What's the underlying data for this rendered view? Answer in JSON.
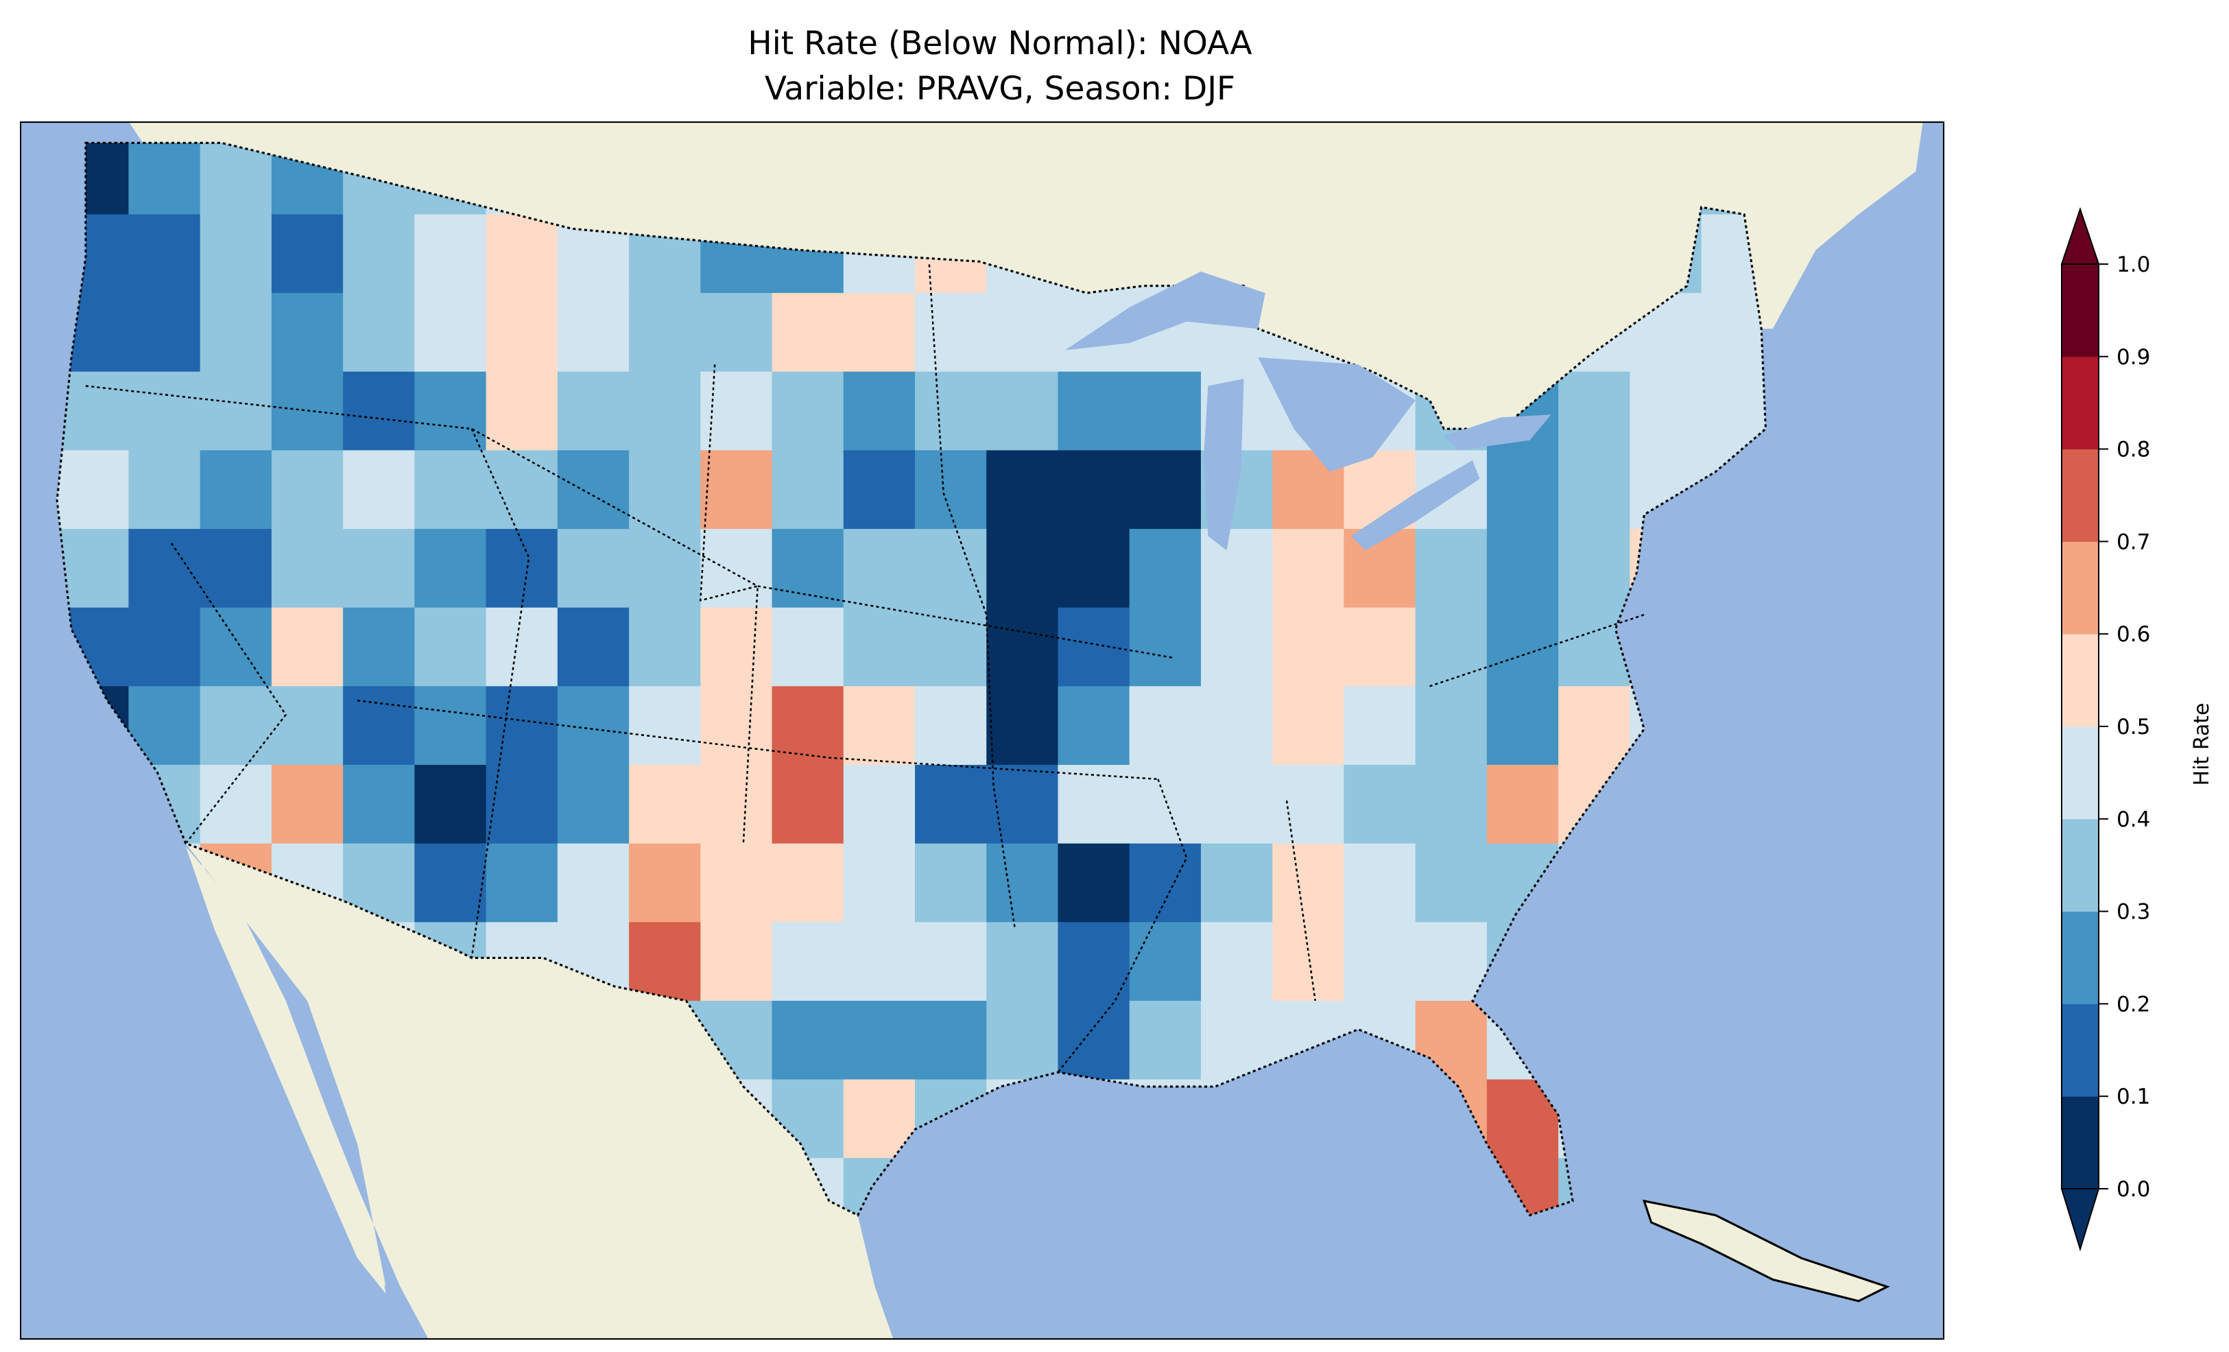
{
  "title": {
    "line1": "Hit Rate (Below Normal): NOAA",
    "line2": "Variable: PRAVG, Season: DJF"
  },
  "colorbar": {
    "label": "Hit Rate",
    "ticks": [
      "0.0",
      "0.1",
      "0.2",
      "0.3",
      "0.4",
      "0.5",
      "0.6",
      "0.7",
      "0.8",
      "0.9",
      "1.0"
    ],
    "colors": [
      "#053061",
      "#2166ac",
      "#4393c3",
      "#92c5de",
      "#d1e5f0",
      "#fddbc7",
      "#f4a582",
      "#d6604d",
      "#b2182b",
      "#67001f"
    ],
    "extend": "both"
  },
  "map_colors": {
    "ocean": "#97b6e1",
    "land": "#efefdb",
    "lakes": "#97b6e1"
  },
  "chart_data": {
    "type": "heatmap",
    "title": "Hit Rate (Below Normal): NOAA / Variable: PRAVG, Season: DJF",
    "colorbar_label": "Hit Rate",
    "vmin": 0.0,
    "vmax": 1.0,
    "levels": [
      0.0,
      0.1,
      0.2,
      0.3,
      0.4,
      0.5,
      0.6,
      0.7,
      0.8,
      0.9,
      1.0
    ],
    "grid_note": "approximate binned values (level index 0-9) over CONUS, rows north to south, columns west to east",
    "rows": [
      "023233434332444444444423",
      "113134543224544444444434",
      "113234543355444444443444",
      "333212533432332244432344",
      "432343323631200036542344",
      "311332133423300245632354",
      "112523413543301245532354",
      "023312124575402445432544",
      "334620125574114444336544",
      "446431246554320135433444",
      "444443447544431245443444",
      "444444443322231344464444",
      "444444444435344444467444",
      "444444444443444444447344"
    ]
  }
}
